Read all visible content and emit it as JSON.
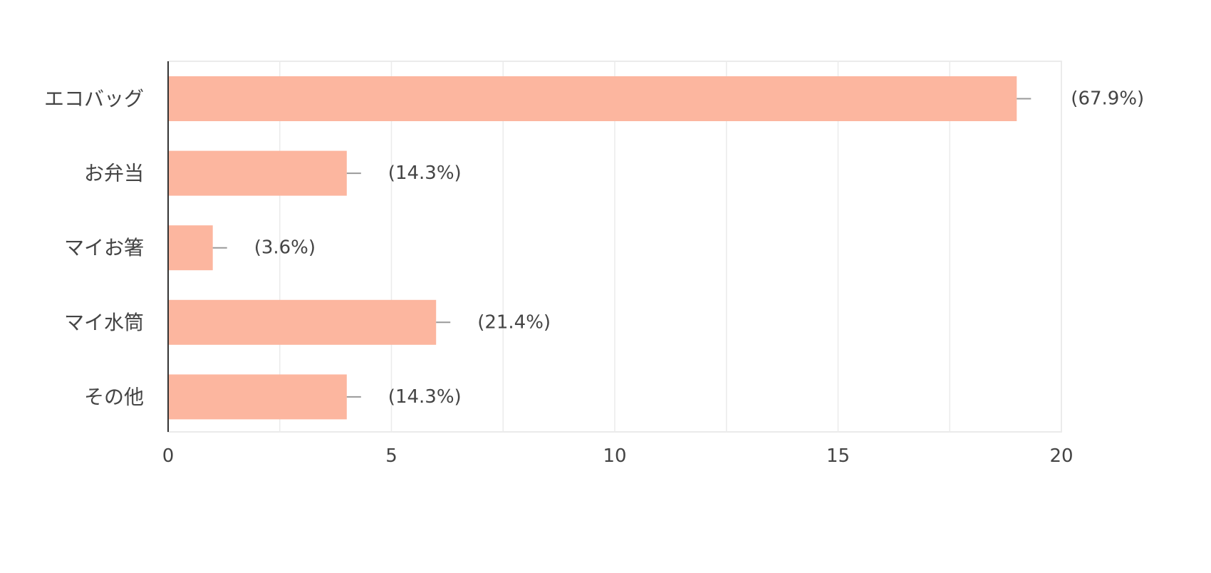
{
  "chart_data": {
    "type": "bar",
    "orientation": "horizontal",
    "title": "",
    "xlabel": "",
    "ylabel": "",
    "categories": [
      "エコバッグ",
      "お弁当",
      "マイお箸",
      "マイ水筒",
      "その他"
    ],
    "values": [
      19,
      4,
      1,
      6,
      4
    ],
    "data_labels": [
      "(67.9%)",
      "(14.3%)",
      "(3.6%)",
      "(21.4%)",
      "(14.3%)"
    ],
    "xlim": [
      0,
      20
    ],
    "x_ticks": [
      "0",
      "5",
      "10",
      "15",
      "20"
    ],
    "grid": true,
    "legend": "none",
    "colors": {
      "bar": "#fcb69f",
      "grid": "#ebebeb",
      "axis": "#333333",
      "leader": "#999999",
      "text": "#444444"
    }
  }
}
